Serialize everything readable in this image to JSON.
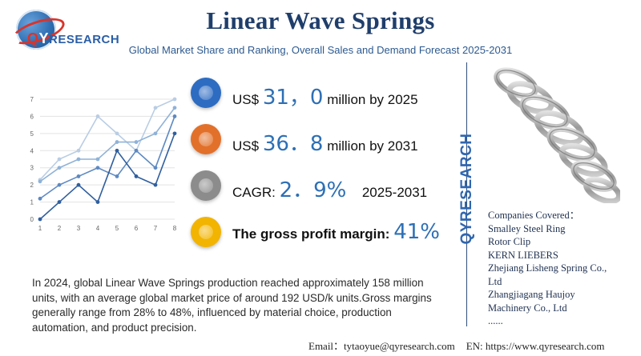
{
  "brand": {
    "logo_q": "Q",
    "logo_y": "Y",
    "logo_rest": "RESEARCH",
    "vertical": "QYRESEARCH"
  },
  "title": "Linear Wave Springs",
  "subtitle": "Global Market Share and Ranking, Overall Sales and Demand Forecast 2025-2031",
  "stats": [
    {
      "prefix": "US$",
      "value": "31，0",
      "suffix": "million by 2025",
      "icon_color": "#2e6cc2",
      "icon": "globe-icon"
    },
    {
      "prefix": "US$",
      "value": "36．8",
      "suffix": "million by 2031",
      "icon_color": "#e2702a",
      "icon": "globe-icon"
    },
    {
      "prefix": "CAGR:",
      "value": "2．9%",
      "suffix": "2025-2031",
      "icon_color": "#8c8c8c",
      "icon": "globe-icon"
    },
    {
      "prefix": "The gross profit margin:",
      "value": "41%",
      "suffix": "",
      "icon_color": "#f2b400",
      "icon": "globe-icon"
    }
  ],
  "companies": {
    "heading": "Companies Covered：",
    "items": [
      "Smalley Steel Ring",
      "Rotor Clip",
      "KERN LIEBERS",
      "Zhejiang Lisheng Spring Co.,",
      "Ltd",
      "Zhangjiagang Haujoy",
      "Machinery Co., Ltd",
      "......"
    ]
  },
  "description": "In 2024, global Linear Wave Springs production reached approximately 158 million units, with an average global market price of around 192 USD/k units.Gross margins generally range from 28% to 48%, influenced by material choice, production automation, and product precision.",
  "footer": {
    "email_label": "Email：",
    "email": "tytaoyue@qyresearch.com",
    "web_label": "EN:",
    "web": "https://www.qyresearch.com"
  },
  "chart_data": {
    "type": "line",
    "x": [
      1,
      2,
      3,
      4,
      5,
      6,
      7,
      8
    ],
    "xticks": [
      "1",
      "2",
      "3",
      "4",
      "5",
      "6",
      "7",
      "8"
    ],
    "yticks": [
      "0",
      "1",
      "2",
      "3",
      "4",
      "5",
      "6",
      "7"
    ],
    "ylim": [
      0,
      7
    ],
    "grid": true,
    "series": [
      {
        "values": [
          2.3,
          3.5,
          4.0,
          6.0,
          5.0,
          4.0,
          6.5,
          7.0
        ],
        "color": "#b9cde4"
      },
      {
        "values": [
          2.2,
          3.0,
          3.5,
          3.5,
          4.5,
          4.5,
          5.0,
          6.5
        ],
        "color": "#8fb2d8"
      },
      {
        "values": [
          1.2,
          2.0,
          2.5,
          3.0,
          2.5,
          4.0,
          3.0,
          6.0
        ],
        "color": "#5d89c2"
      },
      {
        "values": [
          0.0,
          1.0,
          2.0,
          1.0,
          4.0,
          2.5,
          2.0,
          5.0
        ],
        "color": "#2f5f9e"
      }
    ]
  }
}
